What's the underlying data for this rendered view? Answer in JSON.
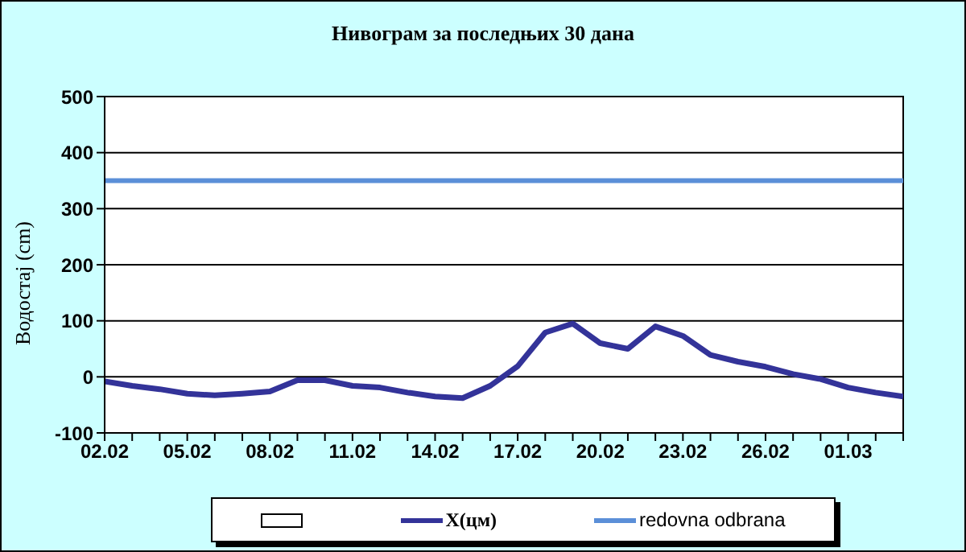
{
  "chart_data": {
    "type": "line",
    "title": "Нивограм за последњих 30 дана",
    "ylabel": "Водостај (cm)",
    "categories": [
      "02.02",
      null,
      null,
      "05.02",
      null,
      null,
      "08.02",
      null,
      null,
      "11.02",
      null,
      null,
      "14.02",
      null,
      null,
      "17.02",
      null,
      null,
      "20.02",
      null,
      null,
      "23.02",
      null,
      null,
      "26.02",
      null,
      null,
      "01.03",
      null,
      null
    ],
    "series": [
      {
        "name": "X(цм)",
        "color": "#333399",
        "values": [
          -8,
          -16,
          -22,
          -30,
          -33,
          -30,
          -26,
          -6,
          -6,
          -16,
          -19,
          -28,
          -35,
          -38,
          -16,
          19,
          79,
          95,
          60,
          50,
          90,
          73,
          39,
          27,
          18,
          5,
          -4,
          -19,
          -28,
          -35
        ]
      }
    ],
    "ref_lines": [
      {
        "axis": "y",
        "value": 350,
        "label": "redovna odbrana",
        "color": "#5b8fd8"
      }
    ],
    "ylim": [
      -100,
      500
    ],
    "yticks": [
      -100,
      0,
      100,
      200,
      300,
      400,
      500
    ],
    "grid": "y",
    "legend": "bottom",
    "marker": "none",
    "line_style": "solid"
  }
}
